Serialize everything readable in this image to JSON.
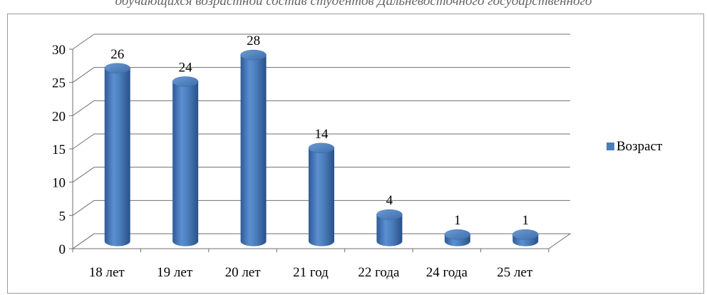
{
  "header": {
    "caption": "обучающихся возрастной состав студентов Дальневосточного государственного"
  },
  "chart_data": {
    "type": "bar",
    "title": "",
    "xlabel": "",
    "ylabel": "",
    "categories": [
      "18 лет",
      "19 лет",
      "20 лет",
      "21 год",
      "22 года",
      "24 года",
      "25 лет"
    ],
    "series": [
      {
        "name": "Возраст",
        "values": [
          26,
          24,
          28,
          14,
          4,
          1,
          1
        ],
        "color": "#4a7ebb"
      }
    ],
    "ylim": [
      0,
      30
    ],
    "yticks": [
      0,
      5,
      10,
      15,
      20,
      25,
      30
    ],
    "grid": true,
    "legend": "right",
    "style": "3d-cylinder"
  }
}
